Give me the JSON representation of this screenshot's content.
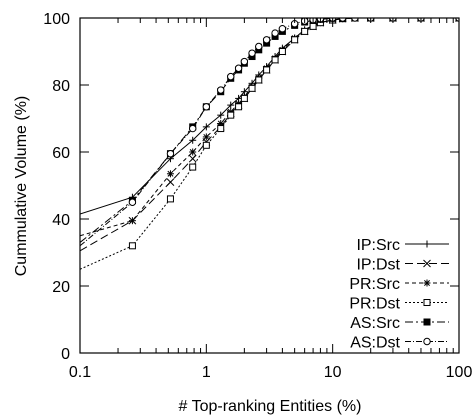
{
  "chart_data": {
    "type": "line",
    "xlabel": "# Top-ranking Entities (%)",
    "ylabel": "Cummulative Volume (%)",
    "x_scale": "log",
    "xlim": [
      0.1,
      100
    ],
    "ylim": [
      0,
      100
    ],
    "x_ticks": [
      0.1,
      1,
      10,
      100
    ],
    "x_tick_labels": [
      "0.1",
      "1",
      "10",
      "100"
    ],
    "y_ticks": [
      0,
      20,
      40,
      60,
      80,
      100
    ],
    "y_tick_labels": [
      "0",
      "20",
      "40",
      "60",
      "80",
      "100"
    ],
    "grid": false,
    "legend_position": "bottom-right",
    "series": [
      {
        "name": "IP:Src",
        "marker": "plus",
        "dash": "",
        "x": [
          0.1,
          0.26,
          0.52,
          0.78,
          1.0,
          1.3,
          1.56,
          1.8,
          2.0,
          2.3,
          2.6,
          3.0,
          3.5,
          4.0,
          5.0,
          6.0,
          7.0,
          8.0,
          10.0,
          12.0,
          15.0,
          20.0,
          30.0,
          50.0,
          100.0
        ],
        "y": [
          41.5,
          46.5,
          58.0,
          63.5,
          67.5,
          71.0,
          74.0,
          76.0,
          78.0,
          80.5,
          83.0,
          85.5,
          88.5,
          91.0,
          94.0,
          96.5,
          97.8,
          98.7,
          99.4,
          99.8,
          100,
          100,
          100,
          100,
          100
        ]
      },
      {
        "name": "IP:Dst",
        "marker": "x",
        "dash": "8,4",
        "x": [
          0.1,
          0.26,
          0.52,
          0.78,
          1.0,
          1.3,
          1.56,
          1.8,
          2.0,
          2.3,
          2.6,
          3.0,
          3.5,
          4.0,
          5.0,
          6.0,
          7.0,
          8.0,
          10.0,
          12.0,
          15.0,
          20.0,
          30.0,
          50.0,
          100.0
        ],
        "y": [
          30.5,
          39.5,
          51.0,
          58.0,
          63.0,
          67.5,
          71.5,
          74.0,
          76.0,
          79.0,
          81.5,
          84.5,
          87.5,
          90.0,
          93.5,
          96.0,
          97.5,
          98.6,
          99.4,
          99.8,
          100,
          100,
          100,
          100,
          100
        ]
      },
      {
        "name": "PR:Src",
        "marker": "star",
        "dash": "4,3",
        "x": [
          0.1,
          0.26,
          0.52,
          0.78,
          1.0,
          1.3,
          1.56,
          1.8,
          2.0,
          2.3,
          2.6,
          3.0,
          3.5,
          4.0,
          5.0,
          6.0,
          7.0,
          8.0,
          10.0,
          12.0,
          15.0,
          20.0,
          30.0,
          50.0,
          100.0
        ],
        "y": [
          35.0,
          39.5,
          53.5,
          60.0,
          64.5,
          68.5,
          72.0,
          74.5,
          76.5,
          79.5,
          82.0,
          85.0,
          88.0,
          90.5,
          94.0,
          96.2,
          97.6,
          98.6,
          99.4,
          99.8,
          100,
          100,
          100,
          100,
          100
        ]
      },
      {
        "name": "PR:Dst",
        "marker": "open-square",
        "dash": "2,2",
        "x": [
          0.1,
          0.26,
          0.52,
          0.78,
          1.0,
          1.3,
          1.56,
          1.8,
          2.0,
          2.3,
          2.6,
          3.0,
          3.5,
          4.0,
          5.0,
          6.0,
          7.0,
          8.0,
          10.0,
          12.0,
          15.0,
          20.0,
          30.0,
          50.0,
          100.0
        ],
        "y": [
          25.0,
          32.0,
          46.0,
          55.5,
          62.0,
          67.0,
          71.0,
          73.5,
          76.0,
          79.0,
          81.5,
          84.5,
          87.5,
          90.0,
          93.5,
          96.0,
          97.5,
          98.6,
          99.4,
          99.8,
          100,
          100,
          100,
          100,
          100
        ]
      },
      {
        "name": "AS:Src",
        "marker": "filled-square",
        "dash": "8,3,2,3",
        "x": [
          0.1,
          0.26,
          0.52,
          0.78,
          1.0,
          1.3,
          1.56,
          1.8,
          2.0,
          2.3,
          2.6,
          3.0,
          3.5,
          4.0,
          5.0,
          6.0,
          7.0,
          8.0,
          10.0,
          12.0,
          15.0,
          20.0,
          30.0,
          50.0,
          100.0
        ],
        "y": [
          33.0,
          45.5,
          59.5,
          67.5,
          73.5,
          78.0,
          82.0,
          84.5,
          86.5,
          88.5,
          90.5,
          92.5,
          94.5,
          96.0,
          97.8,
          98.8,
          99.3,
          99.6,
          99.9,
          100,
          100,
          100,
          100,
          100,
          100
        ]
      },
      {
        "name": "AS:Dst",
        "marker": "open-circle",
        "dash": "6,2,1,2",
        "x": [
          0.1,
          0.26,
          0.52,
          0.78,
          1.0,
          1.3,
          1.56,
          1.8,
          2.0,
          2.3,
          2.6,
          3.0,
          3.5,
          4.0,
          5.0,
          6.0,
          7.0,
          8.0,
          10.0,
          12.0,
          15.0,
          20.0,
          30.0,
          50.0,
          100.0
        ],
        "y": [
          32.0,
          45.0,
          59.5,
          67.0,
          73.5,
          78.5,
          82.5,
          85.0,
          87.0,
          89.5,
          91.5,
          93.5,
          95.5,
          96.8,
          98.3,
          99.1,
          99.5,
          99.8,
          100,
          100,
          100,
          100,
          100,
          100,
          100
        ]
      }
    ]
  }
}
